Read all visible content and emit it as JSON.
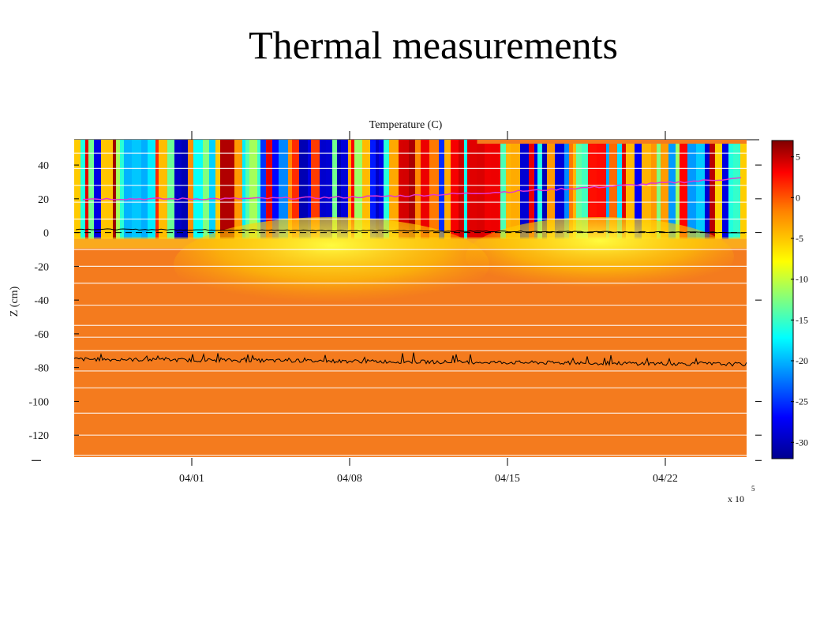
{
  "slide": {
    "title": "Thermal measurements"
  },
  "chart_data": {
    "type": "heatmap",
    "title": "Temperature (C)",
    "xlabel": "",
    "ylabel": "Z (cm)",
    "x_ticks": [
      "04/01",
      "04/08",
      "04/15",
      "04/22"
    ],
    "x_multiplier": "x 10",
    "x_multiplier_exp": "5",
    "y_ticks": [
      40,
      20,
      0,
      -20,
      -40,
      -60,
      -80,
      -100,
      -120
    ],
    "ylim": [
      -133,
      55
    ],
    "colorbar": {
      "ticks": [
        5,
        0,
        -5,
        -10,
        -15,
        -20,
        -25,
        -30
      ],
      "range": [
        -32,
        7
      ],
      "colormap": [
        "#00008f",
        "#0000ff",
        "#00ffff",
        "#ffff00",
        "#ff7f00",
        "#ff0000",
        "#7f0000"
      ]
    },
    "snow_surface_cm": 0,
    "subsurface_trace_cm": -77,
    "colors": {
      "lower_layer": "#f47b1e",
      "pink_trace": "#e23ad0",
      "line": "#000000"
    }
  }
}
